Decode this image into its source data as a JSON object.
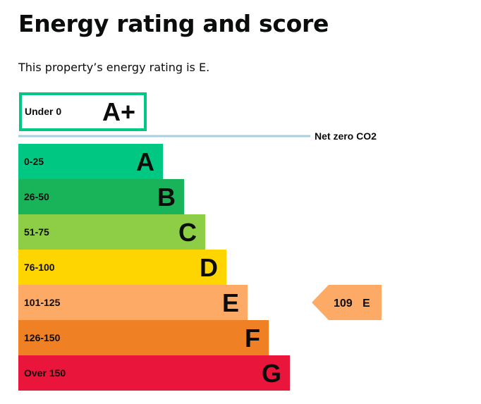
{
  "page": {
    "title": "Energy rating and score",
    "summary": "This property’s energy rating is E."
  },
  "chart_data": {
    "type": "bar",
    "orientation": "horizontal",
    "bands": [
      {
        "letter": "A+",
        "range": "Under 0",
        "color": "#00c781",
        "style": "outline"
      },
      {
        "letter": "A",
        "range": "0-25",
        "color": "#00c781"
      },
      {
        "letter": "B",
        "range": "26-50",
        "color": "#19b459"
      },
      {
        "letter": "C",
        "range": "51-75",
        "color": "#8dce46"
      },
      {
        "letter": "D",
        "range": "76-100",
        "color": "#ffd500"
      },
      {
        "letter": "E",
        "range": "101-125",
        "color": "#fcaa65"
      },
      {
        "letter": "F",
        "range": "126-150",
        "color": "#ef8023"
      },
      {
        "letter": "G",
        "range": "Over 150",
        "color": "#e9153b"
      }
    ],
    "net_zero": {
      "label": "Net zero CO2",
      "color": "#a6d0de"
    },
    "current": {
      "score": "109",
      "letter": "E",
      "band_index": 5,
      "color": "#fcaa65"
    }
  }
}
